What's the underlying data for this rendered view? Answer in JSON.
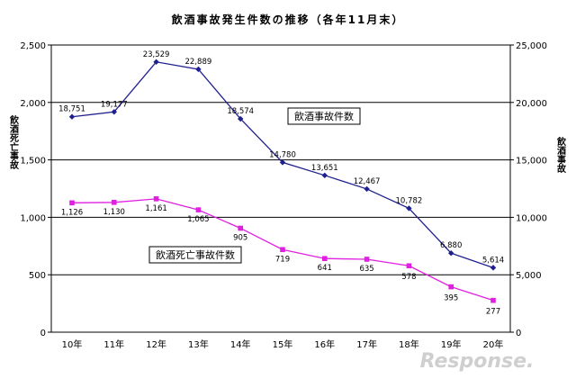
{
  "chart_data": {
    "type": "line",
    "title": "飲酒事故発生件数の推移（各年11月末）",
    "categories": [
      "10年",
      "11年",
      "12年",
      "13年",
      "14年",
      "15年",
      "16年",
      "17年",
      "18年",
      "19年",
      "20年"
    ],
    "left_axis": {
      "label": "飲酒死亡事故",
      "ylim": [
        0,
        2500
      ],
      "ticks": [
        "0",
        "500",
        "1,000",
        "1,500",
        "2,000",
        "2,500"
      ]
    },
    "right_axis": {
      "label": "飲酒事故",
      "ylim": [
        0,
        25000
      ],
      "ticks": [
        "0",
        "5,000",
        "10,000",
        "15,000",
        "20,000",
        "25,000"
      ]
    },
    "series": [
      {
        "name": "飲酒事故件数",
        "axis": "right",
        "color": "#1f1f8f",
        "marker": "diamond",
        "values": [
          18751,
          19177,
          23529,
          22889,
          18574,
          14780,
          13651,
          12467,
          10782,
          6880,
          5614
        ],
        "labels": [
          "18,751",
          "19,177",
          "23,529",
          "22,889",
          "18,574",
          "14,780",
          "13,651",
          "12,467",
          "10,782",
          "6,880",
          "5,614"
        ]
      },
      {
        "name": "飲酒死亡事故件数",
        "axis": "left",
        "color": "#e020e0",
        "marker": "square",
        "values": [
          1126,
          1130,
          1161,
          1065,
          905,
          719,
          641,
          635,
          578,
          395,
          277
        ],
        "labels": [
          "1,126",
          "1,130",
          "1,161",
          "1,065",
          "905",
          "719",
          "641",
          "635",
          "578",
          "395",
          "277"
        ]
      }
    ],
    "gridlines": "horizontal",
    "legend": "inline-boxes"
  },
  "watermark": "Response."
}
